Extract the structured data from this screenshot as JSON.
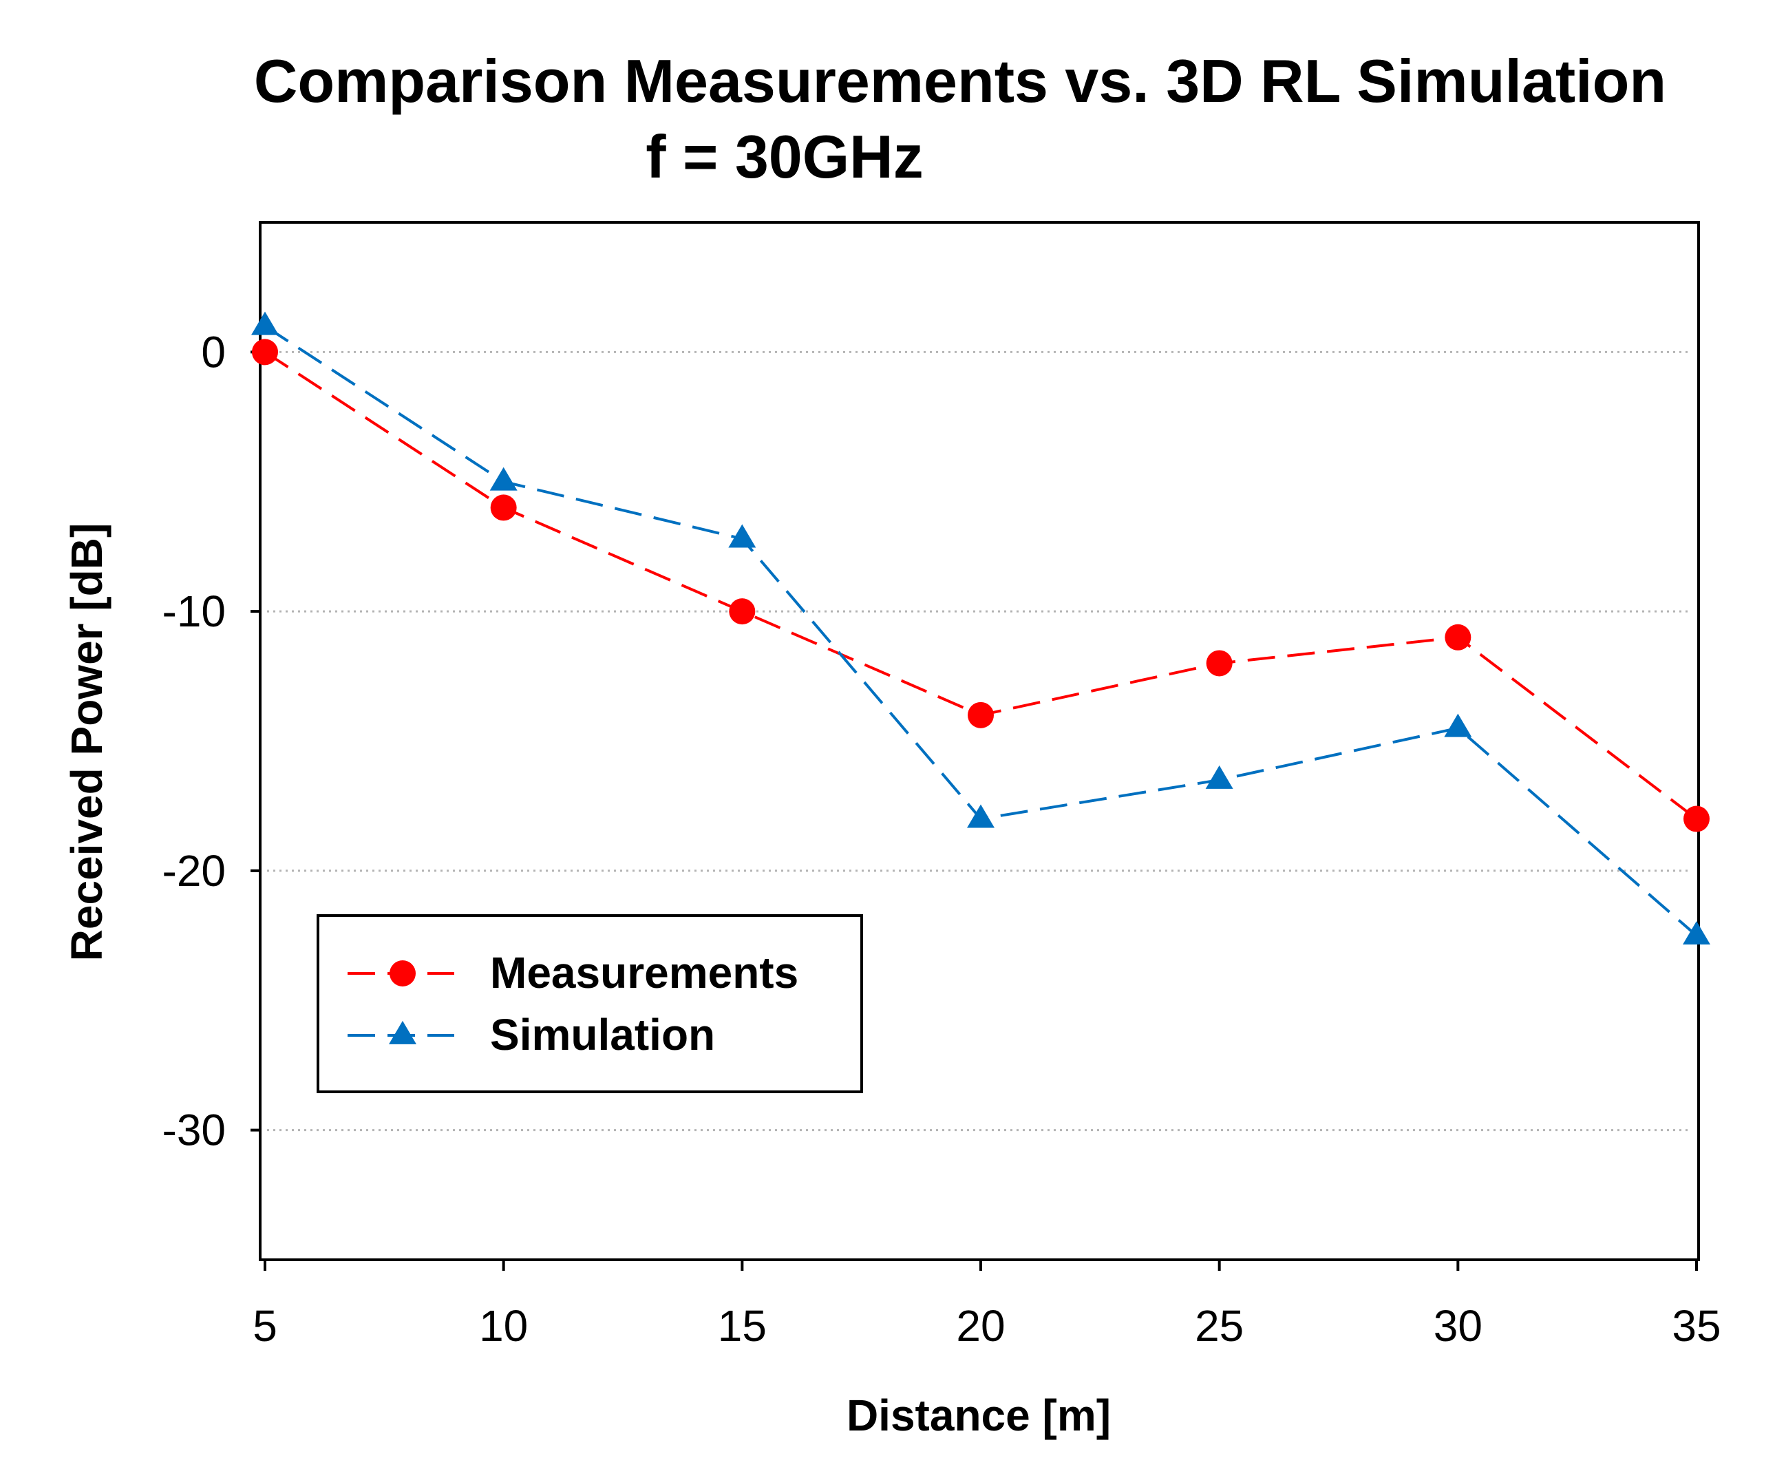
{
  "chart_data": {
    "type": "line",
    "title": "Comparison Measurements vs. 3D RL Simulation",
    "subtitle": "f = 30GHz",
    "xlabel": "Distance [m]",
    "ylabel": "Received Power [dB]",
    "x": [
      5,
      10,
      15,
      20,
      25,
      30,
      35
    ],
    "xlim": [
      5,
      35
    ],
    "ylim": [
      -35,
      5
    ],
    "xticks": [
      5,
      10,
      15,
      20,
      25,
      30,
      35
    ],
    "xtick_labels": [
      "5",
      "10",
      "15",
      "20",
      "25",
      "30",
      "35"
    ],
    "yticks": [
      0,
      -10,
      -20,
      -30
    ],
    "ytick_labels": [
      "0",
      "-10",
      "-20",
      "-30"
    ],
    "grid": "horizontal dotted",
    "legend_position": "lower-left",
    "series": [
      {
        "name": "Measurements",
        "marker": "circle",
        "line_style": "dashed",
        "color": "#ff0000",
        "values": [
          0,
          -6,
          -10,
          -14,
          -12,
          -11,
          -18
        ]
      },
      {
        "name": "Simulation",
        "marker": "triangle",
        "line_style": "dashed",
        "color": "#0070c0",
        "values": [
          1,
          -5,
          -7.2,
          -18,
          -16.5,
          -14.5,
          -22.5
        ]
      }
    ]
  }
}
